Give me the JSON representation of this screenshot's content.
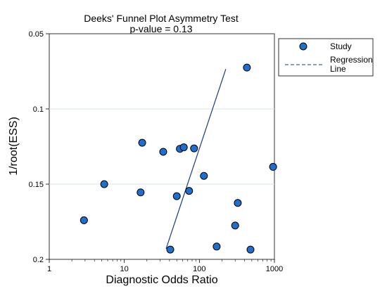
{
  "chart_data": {
    "type": "scatter",
    "title": "Deeks' Funnel Plot Asymmetry Test",
    "subtitle": "p-value  =   0.13",
    "xlabel": "Diagnostic Odds Ratio",
    "ylabel": "1/root(ESS)",
    "x_scale": "log",
    "x_ticks": [
      1,
      10,
      100,
      1000
    ],
    "x_tick_labels": [
      "1",
      "10",
      "100",
      "1000"
    ],
    "xlim": [
      1,
      1000
    ],
    "y_ticks": [
      0.05,
      0.1,
      0.15,
      0.2
    ],
    "y_tick_labels": [
      "0.05",
      "0.1",
      "0.15",
      "0.2"
    ],
    "ylim": [
      0.2,
      0.05
    ],
    "y_axis_inverted": true,
    "grid": "horizontal",
    "legend_position": "right",
    "series": [
      {
        "name": "Study",
        "marker": "circle",
        "color": "#1e6fd0",
        "points": [
          {
            "x": 2.9,
            "y": 0.174
          },
          {
            "x": 5.4,
            "y": 0.15
          },
          {
            "x": 16.5,
            "y": 0.1555
          },
          {
            "x": 17.3,
            "y": 0.1225
          },
          {
            "x": 33,
            "y": 0.1285
          },
          {
            "x": 41,
            "y": 0.1935
          },
          {
            "x": 50,
            "y": 0.158
          },
          {
            "x": 55,
            "y": 0.1265
          },
          {
            "x": 62,
            "y": 0.1255
          },
          {
            "x": 73,
            "y": 0.1545
          },
          {
            "x": 85,
            "y": 0.1262
          },
          {
            "x": 115,
            "y": 0.1445
          },
          {
            "x": 170,
            "y": 0.1915
          },
          {
            "x": 300,
            "y": 0.1775
          },
          {
            "x": 325,
            "y": 0.1625
          },
          {
            "x": 430,
            "y": 0.0725
          },
          {
            "x": 480,
            "y": 0.1935
          },
          {
            "x": 960,
            "y": 0.1385
          }
        ]
      },
      {
        "name": "Regression\nLine",
        "type": "line",
        "style": "dashed",
        "color": "#1a3d80",
        "points": [
          {
            "x": 36,
            "y": 0.193
          },
          {
            "x": 225,
            "y": 0.0735
          }
        ]
      }
    ]
  },
  "legend": {
    "items": [
      {
        "label": "Study"
      },
      {
        "label_line1": "Regression",
        "label_line2": "Line"
      }
    ]
  }
}
